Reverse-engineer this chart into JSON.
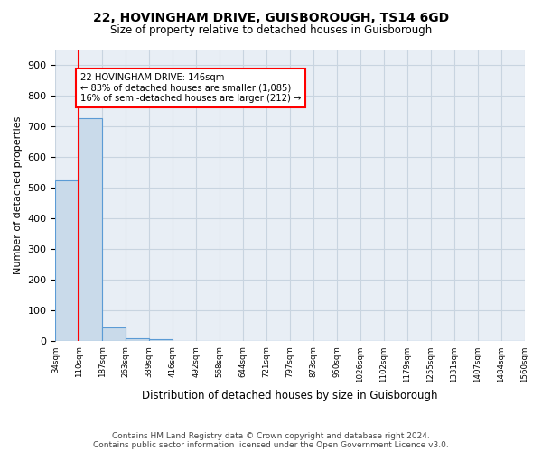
{
  "title1": "22, HOVINGHAM DRIVE, GUISBOROUGH, TS14 6GD",
  "title2": "Size of property relative to detached houses in Guisborough",
  "xlabel": "Distribution of detached houses by size in Guisborough",
  "ylabel": "Number of detached properties",
  "bin_labels": [
    "34sqm",
    "110sqm",
    "187sqm",
    "263sqm",
    "339sqm",
    "416sqm",
    "492sqm",
    "568sqm",
    "644sqm",
    "721sqm",
    "797sqm",
    "873sqm",
    "950sqm",
    "1026sqm",
    "1102sqm",
    "1179sqm",
    "1255sqm",
    "1331sqm",
    "1407sqm",
    "1484sqm",
    "1560sqm"
  ],
  "bar_values": [
    525,
    728,
    45,
    10,
    7,
    2,
    0,
    0,
    0,
    0,
    0,
    0,
    0,
    0,
    0,
    0,
    0,
    0,
    0,
    0
  ],
  "bar_color": "#c9daea",
  "bar_edge_color": "#5b9bd5",
  "red_line_x": 0.5,
  "annotation_text": "22 HOVINGHAM DRIVE: 146sqm\n← 83% of detached houses are smaller (1,085)\n16% of semi-detached houses are larger (212) →",
  "ylim": [
    0,
    950
  ],
  "yticks": [
    0,
    100,
    200,
    300,
    400,
    500,
    600,
    700,
    800,
    900
  ],
  "footer1": "Contains HM Land Registry data © Crown copyright and database right 2024.",
  "footer2": "Contains public sector information licensed under the Open Government Licence v3.0.",
  "bg_color": "#ffffff",
  "ax_bg_color": "#e8eef5",
  "grid_color": "#c8d4e0"
}
